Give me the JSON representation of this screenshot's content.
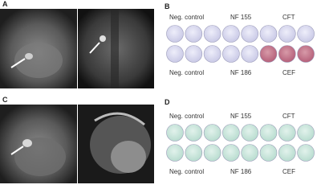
{
  "panels": [
    {
      "label": "A"
    },
    {
      "label": "B",
      "top_labels": [
        "Neg. control",
        "NF 155",
        "CFT"
      ],
      "bottom_labels": [
        "Neg. control",
        "NF 186",
        "CEF"
      ]
    },
    {
      "label": "C"
    },
    {
      "label": "D",
      "top_labels": [
        "Neg. control",
        "NF 155",
        "CFT"
      ],
      "bottom_labels": [
        "Neg. control",
        "NF 186",
        "CEF"
      ]
    }
  ]
}
